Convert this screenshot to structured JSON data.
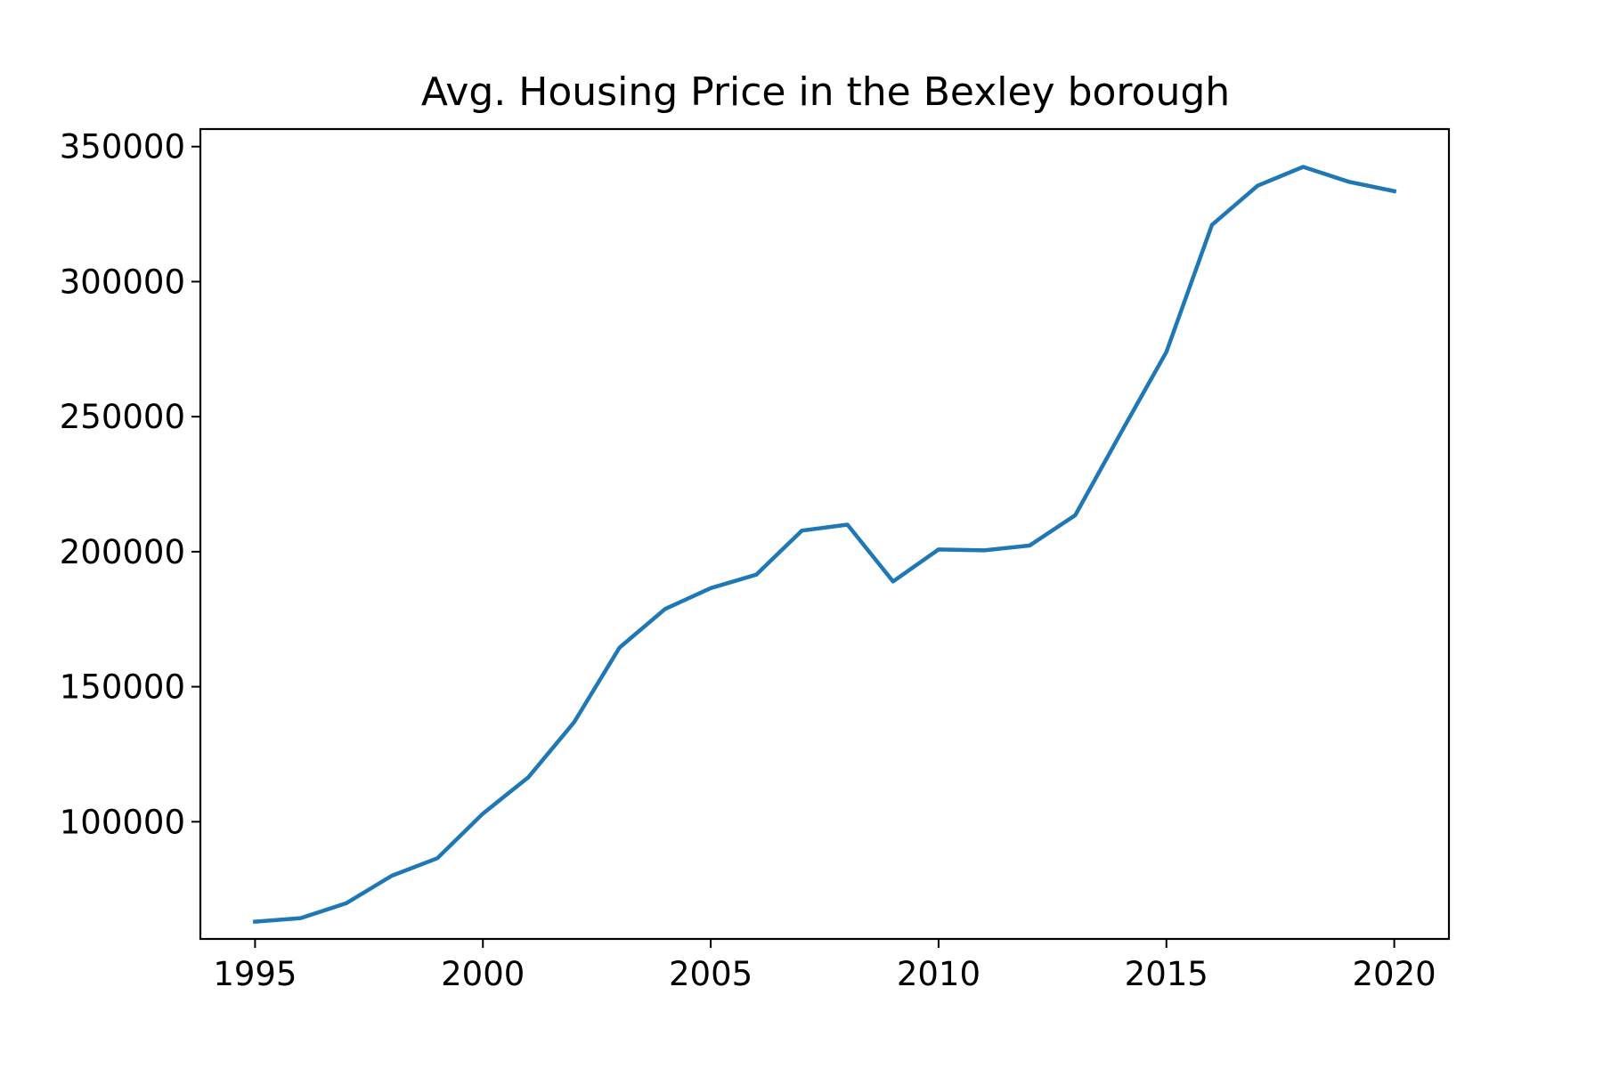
{
  "chart_data": {
    "type": "line",
    "title": "Avg. Housing Price in the Bexley borough",
    "xlabel": "",
    "ylabel": "",
    "xlim": [
      1993.8,
      2021.2
    ],
    "ylim": [
      56600,
      356500
    ],
    "x_ticks": [
      1995,
      2000,
      2005,
      2010,
      2015,
      2020
    ],
    "y_ticks": [
      100000,
      150000,
      200000,
      250000,
      300000,
      350000
    ],
    "grid": false,
    "legend": "none",
    "series": [
      {
        "color": "#1f77b4",
        "x": [
          1995,
          1996,
          1997,
          1998,
          1999,
          2000,
          2001,
          2002,
          2003,
          2004,
          2005,
          2006,
          2007,
          2008,
          2009,
          2010,
          2011,
          2012,
          2013,
          2014,
          2015,
          2016,
          2017,
          2018,
          2019,
          2020
        ],
        "y": [
          63000,
          64300,
          69800,
          80000,
          86500,
          103000,
          116500,
          136800,
          164500,
          178800,
          186500,
          191500,
          207800,
          210000,
          189000,
          200800,
          200500,
          202300,
          213500,
          244000,
          274000,
          321000,
          335500,
          342500,
          337000,
          333500
        ]
      }
    ]
  }
}
